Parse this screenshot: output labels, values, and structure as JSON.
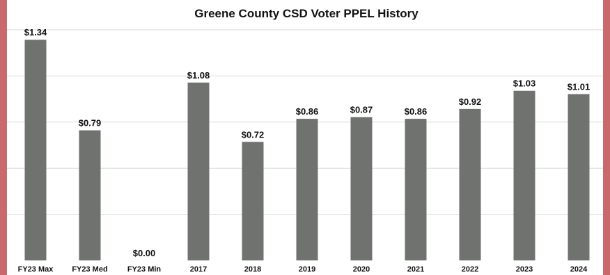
{
  "chart_data": {
    "type": "bar",
    "title": "Greene County CSD Voter PPEL History",
    "categories": [
      "FY23 Max",
      "FY23 Med",
      "FY23 Min",
      "2017",
      "2018",
      "2019",
      "2020",
      "2021",
      "2022",
      "2023",
      "2024"
    ],
    "values": [
      1.34,
      0.79,
      0.0,
      1.08,
      0.72,
      0.86,
      0.87,
      0.86,
      0.92,
      1.03,
      1.01
    ],
    "data_labels": [
      "$1.34",
      "$0.79",
      "$0.00",
      "$1.08",
      "$0.72",
      "$0.86",
      "$0.87",
      "$0.86",
      "$0.92",
      "$1.03",
      "$1.01"
    ],
    "xlabel": "",
    "ylabel": "",
    "ylim": [
      0,
      1.4
    ],
    "grid": true,
    "legend": "none",
    "bar_color": "#6f726f"
  }
}
